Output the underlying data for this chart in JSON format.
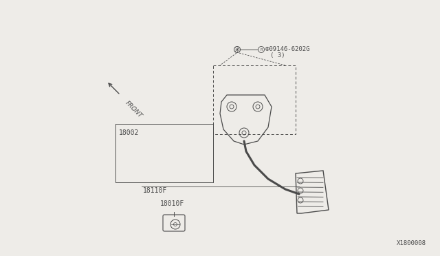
{
  "bg_color": "#eeece8",
  "line_color": "#4a4a4a",
  "part_label_1_line1": "®09146-6202G",
  "part_label_1_line2": "( 3)",
  "part_label_2": "18002",
  "part_label_3": "18110F",
  "part_label_4": "18010F",
  "diagram_id": "X1800008",
  "front_label": "FRONT",
  "figw": 6.4,
  "figh": 3.72,
  "dpi": 100
}
